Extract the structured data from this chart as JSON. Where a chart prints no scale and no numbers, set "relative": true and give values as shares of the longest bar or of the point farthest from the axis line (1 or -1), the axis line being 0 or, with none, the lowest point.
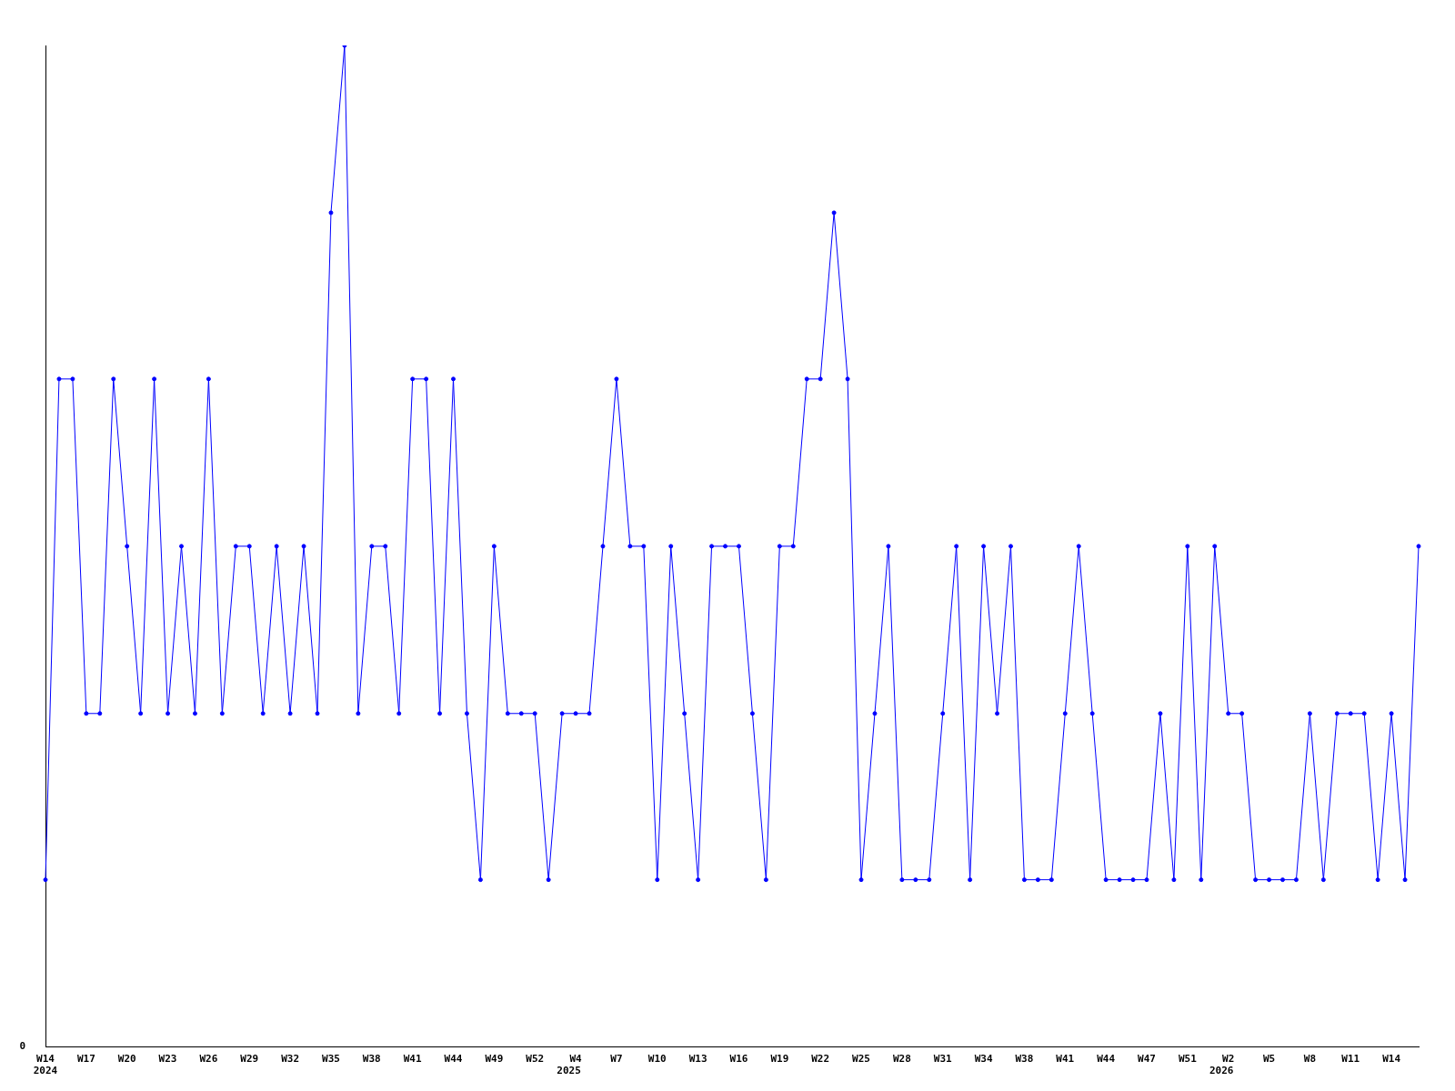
{
  "chart_data": {
    "type": "line",
    "relative": true,
    "marker": "circle",
    "line_style": "solid",
    "grid": false,
    "legend": false,
    "categories": [
      "W14\n2024",
      null,
      null,
      "W17",
      null,
      null,
      "W20",
      null,
      null,
      "W23",
      null,
      null,
      "W26",
      null,
      null,
      "W29",
      null,
      null,
      "W32",
      null,
      null,
      "W35",
      null,
      null,
      "W38",
      null,
      null,
      "W41",
      null,
      null,
      "W44",
      null,
      null,
      "W49",
      null,
      null,
      "W52",
      null,
      null,
      "W4",
      null,
      null,
      "W7",
      null,
      null,
      "W10",
      null,
      null,
      "W13",
      null,
      null,
      "W16",
      null,
      null,
      "W19",
      null,
      null,
      "W22",
      null,
      null,
      "W25",
      null,
      null,
      "W28",
      null,
      null,
      "W31",
      null,
      null,
      "W34",
      null,
      null,
      "W38",
      null,
      null,
      "W41",
      null,
      null,
      "W44",
      null,
      null,
      "W47",
      null,
      null,
      "W51",
      null,
      null,
      "W2",
      null,
      null,
      "W5",
      null,
      null,
      "W8",
      null,
      null,
      "W11",
      null,
      null,
      "W14",
      null,
      null
    ],
    "annotations": [
      "2025",
      "2026",
      "0"
    ],
    "series": [
      {
        "color": "#0000ff",
        "values": [
          0.167,
          0.667,
          0.667,
          0.333,
          0.333,
          0.667,
          0.5,
          0.333,
          0.667,
          0.333,
          0.5,
          0.333,
          0.667,
          0.333,
          0.5,
          0.5,
          0.333,
          0.5,
          0.333,
          0.5,
          0.333,
          0.833,
          1,
          0.333,
          0.5,
          0.5,
          0.333,
          0.667,
          0.667,
          0.333,
          0.667,
          0.333,
          0.167,
          0.5,
          0.333,
          0.333,
          0.333,
          0.167,
          0.333,
          0.333,
          0.333,
          0.5,
          0.667,
          0.5,
          0.5,
          0.167,
          0.5,
          0.333,
          0.167,
          0.5,
          0.5,
          0.5,
          0.333,
          0.167,
          0.5,
          0.5,
          0.667,
          0.667,
          0.833,
          0.667,
          0.167,
          0.333,
          0.5,
          0.167,
          0.167,
          0.167,
          0.333,
          0.5,
          0.167,
          0.5,
          0.333,
          0.5,
          0.167,
          0.167,
          0.167,
          0.333,
          0.5,
          0.333,
          0.167,
          0.167,
          0.167,
          0.167,
          0.333,
          0.167,
          0.5,
          0.167,
          0.5,
          0.333,
          0.333,
          0.167,
          0.167,
          0.167,
          0.167,
          0.333,
          0.167,
          0.333,
          0.333,
          0.333,
          0.167,
          0.333,
          0.167,
          0.5
        ]
      }
    ]
  }
}
